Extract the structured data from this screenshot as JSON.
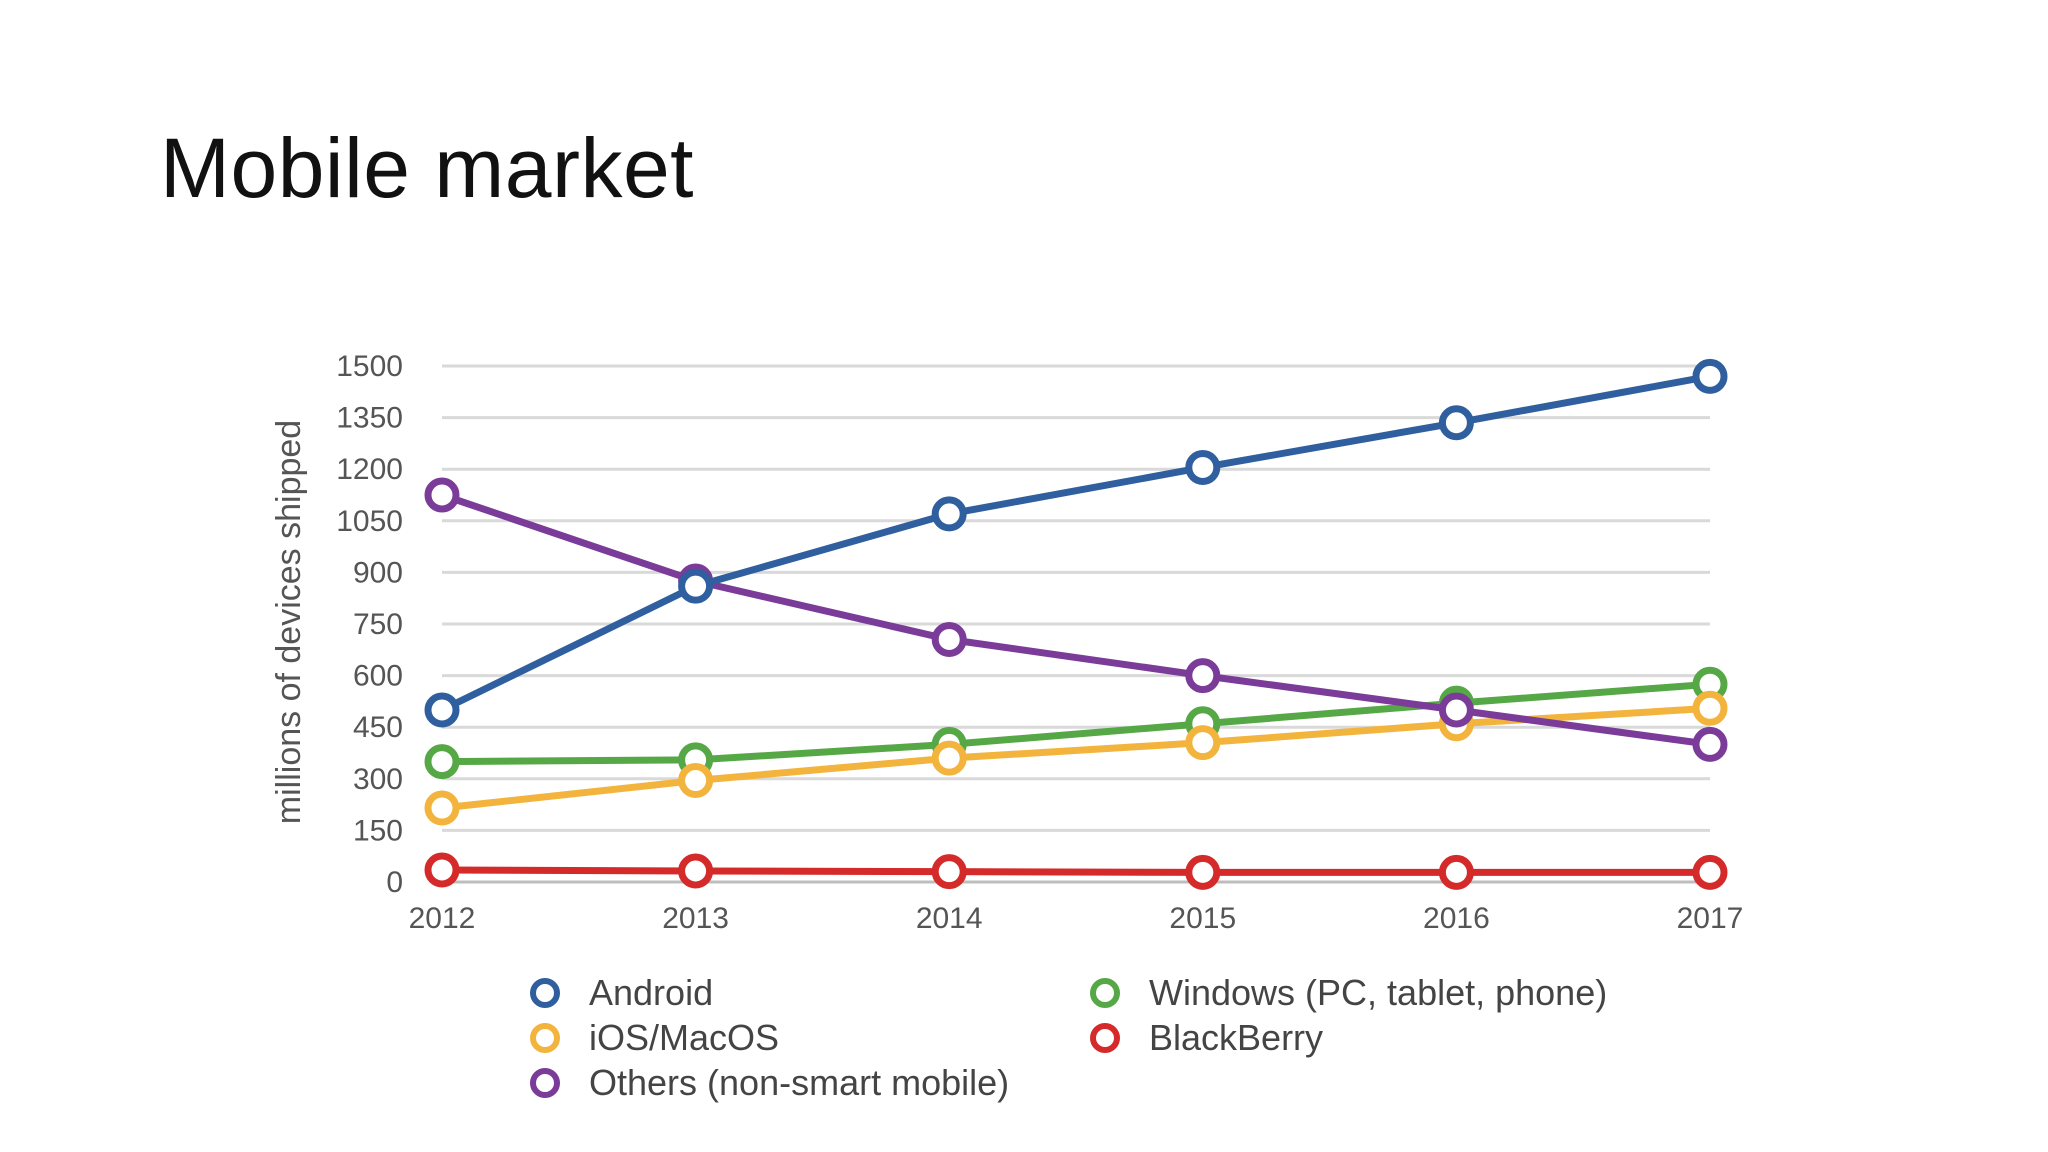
{
  "slide": {
    "title": "Mobile market"
  },
  "chart_data": {
    "type": "line",
    "title": "",
    "xlabel": "",
    "ylabel": "millions of devices shipped",
    "x": [
      "2012",
      "2013",
      "2014",
      "2015",
      "2016",
      "2017"
    ],
    "yticks": [
      "0",
      "150",
      "300",
      "450",
      "600",
      "750",
      "900",
      "1050",
      "1200",
      "1350",
      "1500"
    ],
    "ylim": [
      0,
      1500
    ],
    "grid": true,
    "legend_position": "bottom",
    "series": [
      {
        "name": "Android",
        "color": "#2f5f9e",
        "values": [
          500,
          860,
          1070,
          1205,
          1335,
          1470
        ]
      },
      {
        "name": "Windows (PC, tablet, phone)",
        "color": "#56a846",
        "values": [
          350,
          355,
          400,
          460,
          520,
          575
        ]
      },
      {
        "name": "iOS/MacOS",
        "color": "#f2b43c",
        "values": [
          215,
          295,
          360,
          405,
          460,
          505
        ]
      },
      {
        "name": "BlackBerry",
        "color": "#d42a2a",
        "values": [
          35,
          32,
          30,
          28,
          28,
          28
        ]
      },
      {
        "name": "Others (non-smart mobile)",
        "color": "#7b3b99",
        "values": [
          1125,
          875,
          705,
          600,
          500,
          400
        ]
      }
    ]
  }
}
